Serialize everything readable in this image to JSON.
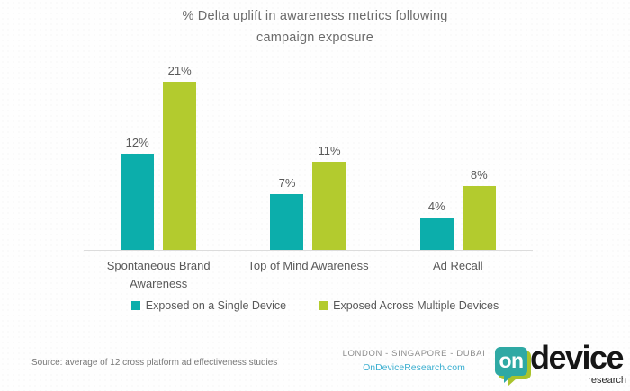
{
  "title": {
    "lines": [
      "% Delta uplift in awareness metrics following",
      "campaign exposure"
    ]
  },
  "chart_data": {
    "type": "bar",
    "title": "% Delta uplift in awareness metrics following campaign exposure",
    "categories": [
      "Spontaneous Brand Awareness",
      "Top of Mind Awareness",
      "Ad Recall"
    ],
    "series": [
      {
        "name": "Exposed on a Single Device",
        "color": "#0caeab",
        "values": [
          12,
          7,
          4
        ]
      },
      {
        "name": "Exposed Across Multiple Devices",
        "color": "#b3cb2e",
        "values": [
          21,
          11,
          8
        ]
      }
    ],
    "value_suffix": "%",
    "ylim": [
      0,
      22
    ],
    "grid": false,
    "legend_position": "bottom",
    "data_labels": true
  },
  "footer": {
    "source": "Source: average of 12 cross platform ad effectiveness studies",
    "cities": "LONDON - SINGAPORE - DUBAI",
    "url": "OnDeviceResearch.com"
  },
  "logo": {
    "bubble_text": "on",
    "brand": "device",
    "sub": "research",
    "teal": "#2fa9a4",
    "green": "#a9c32c"
  },
  "colors": {
    "bar_teal": "#0caeab",
    "bar_green": "#b3cb2e",
    "title_gray": "#6b6b6b",
    "label_gray": "#595959",
    "axis_gray": "#dcdcdc",
    "url_teal": "#3cafd0"
  }
}
